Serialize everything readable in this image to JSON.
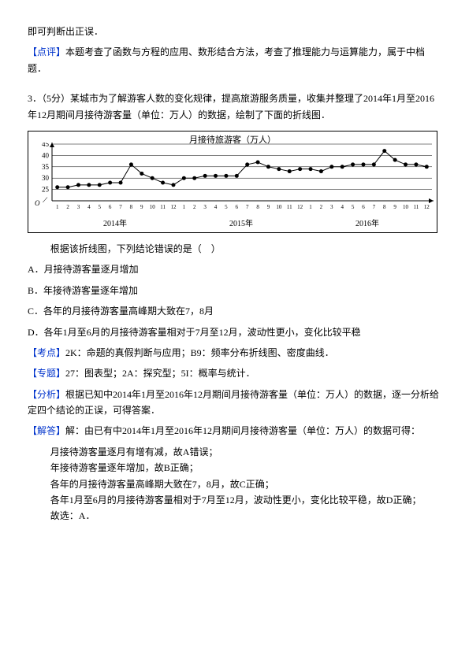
{
  "intro": {
    "p1": "即可判断出正误．",
    "p2": "本题考查了函数与方程的应用、数形结合方法，考查了推理能力与运算能力，属于中档题．",
    "label": "【点评】"
  },
  "question": {
    "num": "3．（5分）某城市为了解游客人数的变化规律，提高旅游服务质量，收集并整理了2014年1月至2016年12月期间月接待游客量（单位：万人）的数据，绘制了下面的折线图．"
  },
  "chart": {
    "type": "line",
    "title": "月接待旅游客（万人）",
    "ylim": [
      20,
      45
    ],
    "yticks": [
      25,
      30,
      35,
      40,
      45
    ],
    "xticks_per_year": [
      1,
      2,
      3,
      4,
      5,
      6,
      7,
      8,
      9,
      10,
      11,
      12
    ],
    "years": [
      "2014年",
      "2015年",
      "2016年"
    ],
    "values": [
      26,
      26,
      27,
      27,
      27,
      28,
      28,
      36,
      32,
      30,
      28,
      27,
      30,
      30,
      31,
      31,
      31,
      31,
      36,
      37,
      35,
      34,
      33,
      34,
      34,
      33,
      35,
      35,
      36,
      36,
      36,
      42,
      38,
      36,
      36,
      35
    ],
    "line_color": "#000000",
    "marker_color": "#000000",
    "marker_size": 2.5,
    "background_color": "#ffffff",
    "grid_color": "#000000",
    "title_color": "#000000",
    "title_fontsize": 11,
    "axis_fontsize": 9
  },
  "after_chart": {
    "p1": "根据该折线图，下列结论错误的是（　）",
    "opts": [
      "A．月接待游客量逐月增加",
      "B．年接待游客量逐年增加",
      "C．各年的月接待游客量高峰期大致在7，8月",
      "D．各年1月至6月的月接待游客量相对于7月至12月，波动性更小，变化比较平稳"
    ]
  },
  "exam": {
    "kaodian_label": "【考点】",
    "kaodian": "2K：命题的真假判断与应用；B9：频率分布折线图、密度曲线．",
    "zhuanti_label": "【专题】",
    "zhuanti": "27：图表型；2A：探究型；5I：概率与统计．",
    "fenxi_label": "【分析】",
    "fenxi": "根据已知中2014年1月至2016年12月期间月接待游客量（单位：万人）的数据，逐一分析给定四个结论的正误，可得答案．",
    "jieda_label": "【解答】",
    "jieda_intro": "解：由已有中2014年1月至2016年12月期间月接待游客量（单位：万人）的数据可得：",
    "jieda_items": [
      "月接待游客量逐月有增有减，故A错误；",
      "年接待游客量逐年增加，故B正确；",
      "各年的月接待游客量高峰期大致在7，8月，故C正确；",
      "各年1月至6月的月接待游客量相对于7月至12月，波动性更小，变化比较平稳，故D正确；"
    ],
    "choose": "故选：A．"
  }
}
